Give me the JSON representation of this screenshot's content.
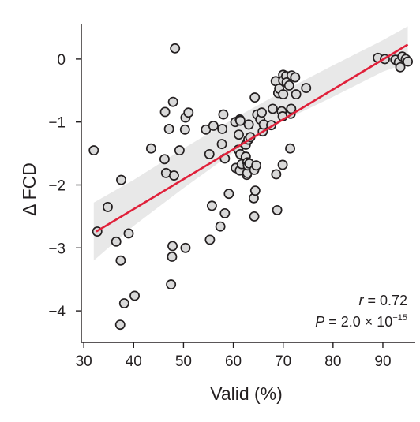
{
  "chart_data": {
    "type": "scatter",
    "xlabel": "Valid (%)",
    "ylabel": "Δ FCD",
    "xlim": [
      29.5,
      96.5
    ],
    "ylim": [
      -4.5,
      0.55
    ],
    "xticks": [
      30,
      40,
      50,
      60,
      70,
      80,
      90
    ],
    "yticks": [
      0,
      -1,
      -2,
      -3,
      -4
    ],
    "ytick_labels": [
      "0",
      "−1",
      "−2",
      "−3",
      "−4"
    ],
    "grid": false,
    "annotations": {
      "r_symbol": "r",
      "r_value": " = 0.72",
      "p_symbol": "P",
      "p_value": " = 2.0 × 10",
      "p_exponent": "−15"
    },
    "colors": {
      "point_fill": "#d9d9d9",
      "point_stroke": "#231f20",
      "fit_line": "#e0203a",
      "confidence_band": "#e8e8e8"
    },
    "fit": {
      "x": [
        32.5,
        95.0
      ],
      "y": [
        -2.74,
        0.23
      ]
    },
    "band": {
      "x": [
        32.0,
        40.0,
        50.0,
        60.0,
        70.0,
        80.0,
        90.0,
        95.0
      ],
      "upper": [
        -2.28,
        -1.92,
        -1.42,
        -0.95,
        -0.51,
        -0.1,
        0.3,
        0.52
      ],
      "lower": [
        -3.2,
        -2.65,
        -2.05,
        -1.48,
        -0.98,
        -0.6,
        -0.2,
        -0.06
      ]
    },
    "points": [
      {
        "x": 32.0,
        "y": -1.45
      },
      {
        "x": 32.7,
        "y": -2.74
      },
      {
        "x": 34.8,
        "y": -2.35
      },
      {
        "x": 36.5,
        "y": -2.9
      },
      {
        "x": 37.5,
        "y": -1.92
      },
      {
        "x": 37.4,
        "y": -3.2
      },
      {
        "x": 38.1,
        "y": -3.88
      },
      {
        "x": 37.3,
        "y": -4.22
      },
      {
        "x": 39.0,
        "y": -2.77
      },
      {
        "x": 40.2,
        "y": -3.76
      },
      {
        "x": 43.5,
        "y": -1.42
      },
      {
        "x": 46.3,
        "y": -0.84
      },
      {
        "x": 46.2,
        "y": -1.59
      },
      {
        "x": 46.5,
        "y": -1.81
      },
      {
        "x": 47.1,
        "y": -1.11
      },
      {
        "x": 47.5,
        "y": -3.58
      },
      {
        "x": 47.7,
        "y": -3.14
      },
      {
        "x": 47.8,
        "y": -2.97
      },
      {
        "x": 47.9,
        "y": -0.68
      },
      {
        "x": 48.3,
        "y": 0.17
      },
      {
        "x": 48.1,
        "y": -1.85
      },
      {
        "x": 49.2,
        "y": -1.45
      },
      {
        "x": 50.3,
        "y": -1.12
      },
      {
        "x": 50.4,
        "y": -0.93
      },
      {
        "x": 51.0,
        "y": -0.85
      },
      {
        "x": 50.4,
        "y": -3.0
      },
      {
        "x": 54.5,
        "y": -1.12
      },
      {
        "x": 55.2,
        "y": -1.51
      },
      {
        "x": 55.3,
        "y": -2.87
      },
      {
        "x": 55.7,
        "y": -2.33
      },
      {
        "x": 56.0,
        "y": -1.06
      },
      {
        "x": 57.4,
        "y": -2.66
      },
      {
        "x": 57.7,
        "y": -1.35
      },
      {
        "x": 57.8,
        "y": -1.11
      },
      {
        "x": 58.0,
        "y": -0.88
      },
      {
        "x": 58.3,
        "y": -2.45
      },
      {
        "x": 58.3,
        "y": -1.58
      },
      {
        "x": 59.1,
        "y": -2.14
      },
      {
        "x": 60.4,
        "y": -1.0
      },
      {
        "x": 60.5,
        "y": -1.73
      },
      {
        "x": 61.0,
        "y": -1.44
      },
      {
        "x": 61.1,
        "y": -1.2
      },
      {
        "x": 61.3,
        "y": -0.96
      },
      {
        "x": 61.4,
        "y": -0.98
      },
      {
        "x": 61.4,
        "y": -1.51
      },
      {
        "x": 61.3,
        "y": -1.77
      },
      {
        "x": 61.7,
        "y": -1.67
      },
      {
        "x": 62.5,
        "y": -1.36
      },
      {
        "x": 62.5,
        "y": -1.55
      },
      {
        "x": 62.7,
        "y": -1.84
      },
      {
        "x": 62.8,
        "y": -1.81
      },
      {
        "x": 62.8,
        "y": -1.64
      },
      {
        "x": 62.9,
        "y": -1.69
      },
      {
        "x": 63.0,
        "y": -1.28
      },
      {
        "x": 63.1,
        "y": -1.04
      },
      {
        "x": 63.2,
        "y": -1.66
      },
      {
        "x": 63.4,
        "y": -1.24
      },
      {
        "x": 64.1,
        "y": -2.21
      },
      {
        "x": 64.2,
        "y": -2.5
      },
      {
        "x": 64.2,
        "y": -1.76
      },
      {
        "x": 64.3,
        "y": -0.61
      },
      {
        "x": 64.4,
        "y": -2.09
      },
      {
        "x": 64.6,
        "y": -1.69
      },
      {
        "x": 64.8,
        "y": -0.88
      },
      {
        "x": 65.4,
        "y": -0.96
      },
      {
        "x": 65.7,
        "y": -0.85
      },
      {
        "x": 65.9,
        "y": -1.15
      },
      {
        "x": 66.1,
        "y": -1.04
      },
      {
        "x": 67.6,
        "y": -1.05
      },
      {
        "x": 67.9,
        "y": -0.79
      },
      {
        "x": 68.5,
        "y": -0.35
      },
      {
        "x": 68.6,
        "y": -1.83
      },
      {
        "x": 68.8,
        "y": -2.4
      },
      {
        "x": 69.0,
        "y": -0.54
      },
      {
        "x": 69.2,
        "y": -0.47
      },
      {
        "x": 69.7,
        "y": -0.83
      },
      {
        "x": 69.9,
        "y": -1.68
      },
      {
        "x": 69.9,
        "y": -0.91
      },
      {
        "x": 70.0,
        "y": -0.25
      },
      {
        "x": 70.0,
        "y": -0.56
      },
      {
        "x": 70.0,
        "y": -0.34
      },
      {
        "x": 70.6,
        "y": -0.27
      },
      {
        "x": 70.7,
        "y": -0.37
      },
      {
        "x": 71.2,
        "y": -0.42
      },
      {
        "x": 71.4,
        "y": -1.42
      },
      {
        "x": 71.5,
        "y": -0.87
      },
      {
        "x": 71.6,
        "y": -0.79
      },
      {
        "x": 71.7,
        "y": -0.26
      },
      {
        "x": 72.4,
        "y": -0.29
      },
      {
        "x": 72.6,
        "y": -0.56
      },
      {
        "x": 74.6,
        "y": -0.46
      },
      {
        "x": 89.0,
        "y": 0.02
      },
      {
        "x": 90.4,
        "y": 0.0
      },
      {
        "x": 92.5,
        "y": -0.01
      },
      {
        "x": 93.2,
        "y": -0.05
      },
      {
        "x": 93.5,
        "y": -0.13
      },
      {
        "x": 93.9,
        "y": 0.04
      },
      {
        "x": 94.6,
        "y": 0.0
      },
      {
        "x": 95.0,
        "y": -0.04
      }
    ]
  }
}
